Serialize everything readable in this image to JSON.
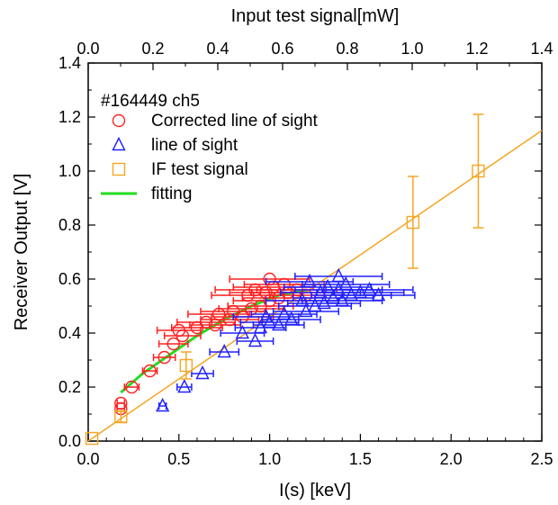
{
  "chart_data": {
    "type": "scatter",
    "xlabel": "I(s) [keV]",
    "ylabel": "Receiver Output [V]",
    "x2label": "Input test signal[mW]",
    "xlim": [
      0,
      2.5
    ],
    "ylim": [
      0,
      1.4
    ],
    "x2lim": [
      0,
      1.4
    ],
    "xticks": [
      "0.0",
      "0.5",
      "1.0",
      "1.5",
      "2.0",
      "2.5"
    ],
    "yticks": [
      "0.0",
      "0.2",
      "0.4",
      "0.6",
      "0.8",
      "1.0",
      "1.2",
      "1.4"
    ],
    "x2ticks": [
      "0.0",
      "0.2",
      "0.4",
      "0.6",
      "0.8",
      "1.0",
      "1.2",
      "1.4"
    ],
    "legend": {
      "title": "#164449 ch5",
      "position": "top-left",
      "entries": [
        {
          "label": "Corrected line of sight",
          "marker": "circle",
          "color": "#ff2020"
        },
        {
          "label": "line of sight",
          "marker": "triangle",
          "color": "#2020ff"
        },
        {
          "label": "IF test signal",
          "marker": "square",
          "color": "#f5a623"
        },
        {
          "label": "fitting",
          "marker": "line",
          "color": "#22dd22"
        }
      ]
    },
    "series": [
      {
        "name": "Corrected line of sight",
        "marker": "circle",
        "color": "#ff2020",
        "points": [
          {
            "x": 0.18,
            "y": 0.12,
            "xerr": 0.02
          },
          {
            "x": 0.18,
            "y": 0.14,
            "xerr": 0.02
          },
          {
            "x": 0.24,
            "y": 0.2,
            "xerr": 0.04
          },
          {
            "x": 0.34,
            "y": 0.26,
            "xerr": 0.04
          },
          {
            "x": 0.42,
            "y": 0.31,
            "xerr": 0.06
          },
          {
            "x": 0.47,
            "y": 0.36,
            "xerr": 0.08
          },
          {
            "x": 0.52,
            "y": 0.39,
            "xerr": 0.1
          },
          {
            "x": 0.5,
            "y": 0.41,
            "xerr": 0.12
          },
          {
            "x": 0.6,
            "y": 0.42,
            "xerr": 0.14
          },
          {
            "x": 0.7,
            "y": 0.43,
            "xerr": 0.14
          },
          {
            "x": 0.65,
            "y": 0.44,
            "xerr": 0.16
          },
          {
            "x": 0.78,
            "y": 0.45,
            "xerr": 0.16
          },
          {
            "x": 0.85,
            "y": 0.46,
            "xerr": 0.17
          },
          {
            "x": 0.72,
            "y": 0.47,
            "xerr": 0.17
          },
          {
            "x": 0.8,
            "y": 0.48,
            "xerr": 0.18
          },
          {
            "x": 0.9,
            "y": 0.49,
            "xerr": 0.18
          },
          {
            "x": 0.95,
            "y": 0.5,
            "xerr": 0.18
          },
          {
            "x": 1.0,
            "y": 0.52,
            "xerr": 0.2
          },
          {
            "x": 1.05,
            "y": 0.53,
            "xerr": 0.2
          },
          {
            "x": 0.88,
            "y": 0.54,
            "xerr": 0.2
          },
          {
            "x": 0.98,
            "y": 0.55,
            "xerr": 0.2
          },
          {
            "x": 1.1,
            "y": 0.55,
            "xerr": 0.2
          },
          {
            "x": 0.92,
            "y": 0.56,
            "xerr": 0.22
          },
          {
            "x": 1.02,
            "y": 0.57,
            "xerr": 0.22
          },
          {
            "x": 1.08,
            "y": 0.58,
            "xerr": 0.22
          },
          {
            "x": 1.0,
            "y": 0.6,
            "xerr": 0.22
          },
          {
            "x": 1.15,
            "y": 0.56,
            "xerr": 0.22
          },
          {
            "x": 1.2,
            "y": 0.54,
            "xerr": 0.2
          }
        ]
      },
      {
        "name": "line of sight",
        "marker": "triangle",
        "color": "#2020ff",
        "points": [
          {
            "x": 0.41,
            "y": 0.13,
            "xerr": 0.02
          },
          {
            "x": 0.53,
            "y": 0.2,
            "xerr": 0.04
          },
          {
            "x": 0.63,
            "y": 0.25,
            "xerr": 0.06
          },
          {
            "x": 0.75,
            "y": 0.33,
            "xerr": 0.08
          },
          {
            "x": 0.92,
            "y": 0.37,
            "xerr": 0.1
          },
          {
            "x": 0.85,
            "y": 0.4,
            "xerr": 0.12
          },
          {
            "x": 0.95,
            "y": 0.42,
            "xerr": 0.14
          },
          {
            "x": 1.05,
            "y": 0.43,
            "xerr": 0.14
          },
          {
            "x": 1.0,
            "y": 0.44,
            "xerr": 0.16
          },
          {
            "x": 1.12,
            "y": 0.45,
            "xerr": 0.16
          },
          {
            "x": 0.98,
            "y": 0.46,
            "xerr": 0.18
          },
          {
            "x": 1.08,
            "y": 0.47,
            "xerr": 0.18
          },
          {
            "x": 1.2,
            "y": 0.48,
            "xerr": 0.18
          },
          {
            "x": 1.25,
            "y": 0.5,
            "xerr": 0.2
          },
          {
            "x": 1.3,
            "y": 0.51,
            "xerr": 0.2
          },
          {
            "x": 1.4,
            "y": 0.52,
            "xerr": 0.22
          },
          {
            "x": 1.35,
            "y": 0.53,
            "xerr": 0.22
          },
          {
            "x": 1.45,
            "y": 0.54,
            "xerr": 0.22
          },
          {
            "x": 1.28,
            "y": 0.55,
            "xerr": 0.22
          },
          {
            "x": 1.5,
            "y": 0.55,
            "xerr": 0.24
          },
          {
            "x": 1.38,
            "y": 0.56,
            "xerr": 0.24
          },
          {
            "x": 1.55,
            "y": 0.56,
            "xerr": 0.24
          },
          {
            "x": 1.32,
            "y": 0.57,
            "xerr": 0.24
          },
          {
            "x": 1.42,
            "y": 0.58,
            "xerr": 0.24
          },
          {
            "x": 1.22,
            "y": 0.59,
            "xerr": 0.24
          },
          {
            "x": 1.38,
            "y": 0.61,
            "xerr": 0.24
          },
          {
            "x": 1.6,
            "y": 0.54,
            "xerr": 0.2
          },
          {
            "x": 1.18,
            "y": 0.52,
            "xerr": 0.2
          }
        ]
      },
      {
        "name": "IF test signal",
        "marker": "square",
        "color": "#f5a623",
        "points": [
          {
            "x": 0.02,
            "y": 0.01,
            "yerr": 0.0
          },
          {
            "x": 0.18,
            "y": 0.09,
            "yerr": 0.02
          },
          {
            "x": 0.54,
            "y": 0.28,
            "yerr": 0.05
          },
          {
            "x": 1.79,
            "y": 0.81,
            "yerr": 0.17
          },
          {
            "x": 2.15,
            "y": 1.0,
            "yerr": 0.21
          }
        ]
      }
    ],
    "fits": [
      {
        "name": "IF test signal",
        "type": "linear",
        "color": "#f5a623",
        "x": [
          0.0,
          2.5
        ],
        "y": [
          0.0,
          1.15
        ]
      },
      {
        "name": "fitting",
        "type": "curve",
        "color": "#22dd22",
        "x": [
          0.18,
          0.3,
          0.45,
          0.6,
          0.75,
          0.9,
          1.05,
          1.2
        ],
        "y": [
          0.18,
          0.25,
          0.32,
          0.39,
          0.45,
          0.5,
          0.54,
          0.56
        ]
      }
    ]
  }
}
